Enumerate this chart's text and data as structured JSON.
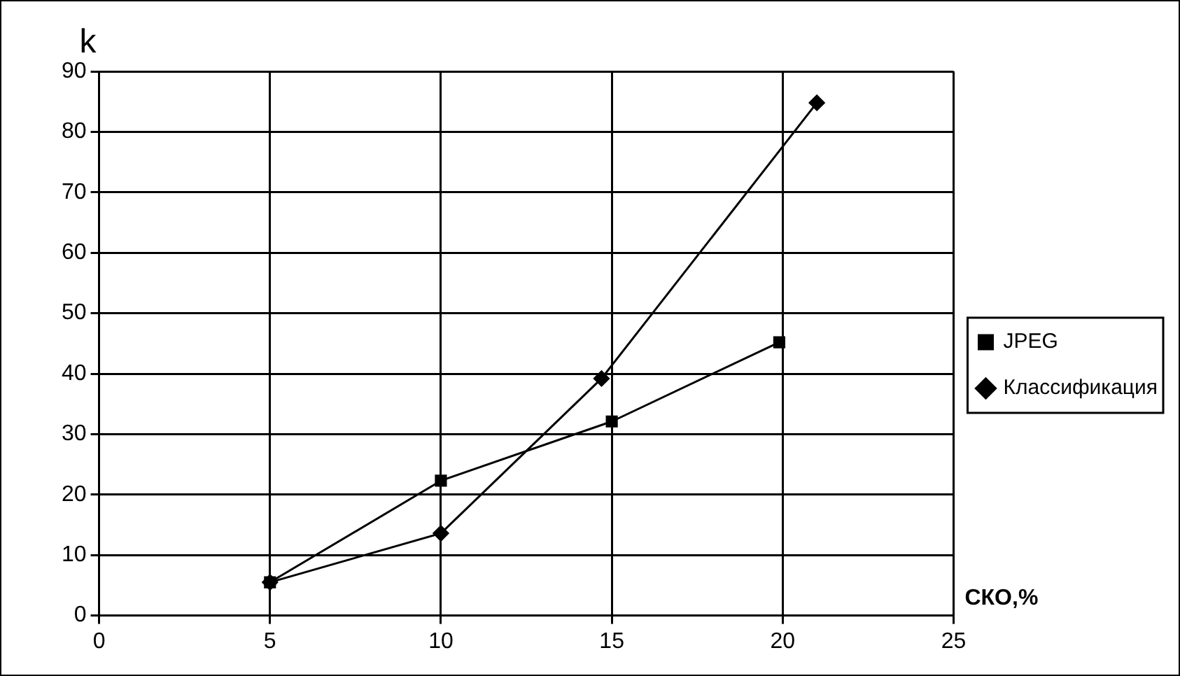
{
  "chart_data": {
    "type": "line",
    "xlabel": "СКО,%",
    "ylabel": "k",
    "xlim": [
      0,
      25
    ],
    "xticks": [
      0,
      5,
      10,
      15,
      20,
      25
    ],
    "ylim": [
      0,
      90
    ],
    "yticks": [
      0,
      10,
      20,
      30,
      40,
      50,
      60,
      70,
      80,
      90
    ],
    "grid": true,
    "legend": "right",
    "line_style": "solid",
    "series": [
      {
        "name": "Классификация",
        "color": "#000000",
        "marker": "diamond",
        "x": [
          5,
          10,
          14.7,
          21
        ],
        "values": [
          5.5,
          13.6,
          39.2,
          84.8
        ]
      },
      {
        "name": "JPEG",
        "color": "#000000",
        "marker": "square",
        "x": [
          5,
          10,
          15,
          19.9
        ],
        "values": [
          5.5,
          22.3,
          32.1,
          45.2
        ]
      }
    ]
  }
}
